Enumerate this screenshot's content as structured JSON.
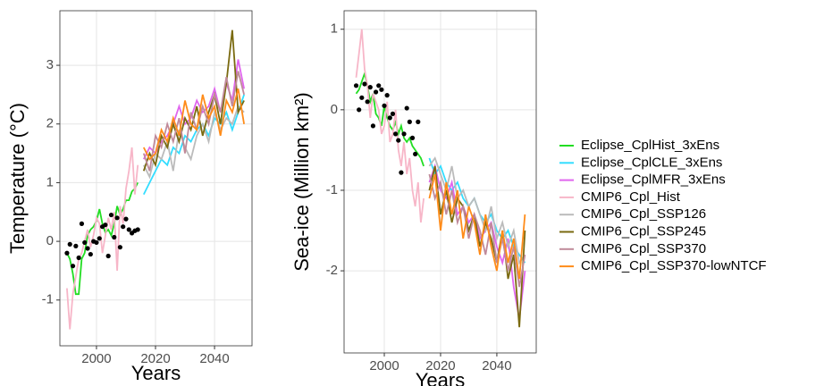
{
  "chart_data": [
    {
      "type": "line",
      "x_label": "Years",
      "y_label": "Temperature  (°C)",
      "xlim": [
        1987.6,
        2052.7
      ],
      "ylim": [
        -1.78,
        3.93
      ],
      "xticks": [
        2000,
        2020,
        2040
      ],
      "yticks": [
        -1,
        0,
        1,
        2,
        3
      ],
      "grid": true,
      "legend": "right",
      "series": [
        {
          "name": "Eclipse_CplHist_3xEns",
          "color": "#22dd22",
          "x": [
            1990,
            1991,
            1992,
            1993,
            1994,
            1995,
            1996,
            1997,
            1998,
            1999,
            2000,
            2001,
            2002,
            2003,
            2004,
            2005,
            2006,
            2007,
            2008,
            2009,
            2010,
            2011,
            2012,
            2013,
            2014
          ],
          "values": [
            -0.2,
            -0.3,
            -0.55,
            -0.9,
            -0.9,
            -0.3,
            -0.2,
            0.1,
            0.2,
            0.25,
            0.35,
            0.55,
            0.3,
            0.15,
            0.2,
            0.1,
            0.3,
            0.6,
            0.45,
            0.55,
            0.7,
            0.7,
            0.85,
            0.9,
            1.0
          ]
        },
        {
          "name": "Eclipse_CplCLE_3xEns",
          "color": "#33ddff",
          "x": [
            2016,
            2018,
            2020,
            2022,
            2024,
            2026,
            2028,
            2030,
            2032,
            2034,
            2036,
            2038,
            2040,
            2042,
            2044,
            2046,
            2048,
            2050
          ],
          "values": [
            0.8,
            1.0,
            1.2,
            1.4,
            1.3,
            1.6,
            1.5,
            1.8,
            1.7,
            1.9,
            2.0,
            1.8,
            2.1,
            2.0,
            2.2,
            1.9,
            2.2,
            2.5
          ]
        },
        {
          "name": "Eclipse_CplMFR_3xEns",
          "color": "#e066ee",
          "x": [
            2016,
            2018,
            2020,
            2022,
            2024,
            2026,
            2028,
            2030,
            2032,
            2034,
            2036,
            2038,
            2040,
            2042,
            2044,
            2046,
            2048,
            2050
          ],
          "values": [
            1.4,
            1.6,
            1.5,
            1.7,
            1.8,
            2.0,
            2.3,
            2.0,
            2.1,
            2.4,
            2.2,
            2.3,
            2.6,
            2.2,
            2.7,
            2.4,
            3.1,
            2.6
          ]
        },
        {
          "name": "CMIP6_Cpl_Hist",
          "color": "#f7b6c8",
          "x": [
            1990,
            1991,
            1992,
            1993,
            1994,
            1995,
            1996,
            1997,
            1998,
            1999,
            2000,
            2001,
            2002,
            2003,
            2004,
            2005,
            2006,
            2007,
            2008,
            2009,
            2010,
            2011,
            2012,
            2013,
            2014
          ],
          "values": [
            -0.8,
            -1.5,
            -0.9,
            -0.6,
            -0.3,
            -0.2,
            0.0,
            0.2,
            -0.1,
            0.1,
            0.4,
            0.3,
            -0.2,
            0.1,
            0.4,
            0.2,
            0.5,
            -0.5,
            0.6,
            0.3,
            0.9,
            1.2,
            1.6,
            0.8,
            1.3
          ]
        },
        {
          "name": "CMIP6_Cpl_SSP126",
          "color": "#bbbbbb",
          "x": [
            2016,
            2018,
            2020,
            2022,
            2024,
            2026,
            2028,
            2030,
            2032,
            2034,
            2036,
            2038,
            2040,
            2042,
            2044,
            2046,
            2048,
            2050
          ],
          "values": [
            1.3,
            1.1,
            1.5,
            1.4,
            1.7,
            1.2,
            1.9,
            1.6,
            1.4,
            1.8,
            2.0,
            1.7,
            2.2,
            1.9,
            2.1,
            2.0,
            2.3,
            2.2
          ]
        },
        {
          "name": "CMIP6_Cpl_SSP245",
          "color": "#7a6a10",
          "x": [
            2016,
            2018,
            2020,
            2022,
            2024,
            2026,
            2028,
            2030,
            2032,
            2034,
            2036,
            2038,
            2040,
            2042,
            2044,
            2046,
            2048,
            2050
          ],
          "values": [
            1.2,
            1.5,
            1.3,
            1.8,
            1.6,
            2.0,
            1.7,
            2.1,
            1.9,
            2.3,
            1.8,
            2.2,
            2.5,
            2.0,
            2.7,
            3.6,
            2.2,
            2.4
          ]
        },
        {
          "name": "CMIP6_Cpl_SSP370",
          "color": "#c08a9a",
          "x": [
            2016,
            2018,
            2020,
            2022,
            2024,
            2026,
            2028,
            2030,
            2032,
            2034,
            2036,
            2038,
            2040,
            2042,
            2044,
            2046,
            2048,
            2050
          ],
          "values": [
            1.5,
            1.2,
            1.8,
            1.6,
            2.0,
            1.7,
            2.1,
            1.5,
            2.2,
            1.9,
            2.3,
            2.0,
            2.5,
            2.2,
            2.8,
            2.3,
            2.9,
            2.5
          ]
        },
        {
          "name": "CMIP6_Cpl_SSP370-lowNTCF",
          "color": "#ff8c1a",
          "x": [
            2016,
            2018,
            2020,
            2022,
            2024,
            2026,
            2028,
            2030,
            2032,
            2034,
            2036,
            2038,
            2040,
            2042,
            2044,
            2046,
            2048,
            2050
          ],
          "values": [
            1.6,
            1.4,
            1.5,
            1.9,
            1.7,
            2.1,
            1.8,
            2.4,
            2.0,
            1.9,
            2.5,
            2.1,
            2.3,
            1.8,
            2.4,
            2.2,
            2.6,
            2.0
          ]
        },
        {
          "mode": "markers",
          "color": "#000000",
          "x": [
            1990,
            1991,
            1992,
            1993,
            1994,
            1995,
            1996,
            1997,
            1998,
            1999,
            2000,
            2001,
            2002,
            2003,
            2004,
            2005,
            2006,
            2007,
            2008,
            2009,
            2010,
            2011,
            2012,
            2013,
            2014
          ],
          "values": [
            -0.2,
            -0.05,
            -0.42,
            -0.08,
            -0.28,
            0.3,
            -0.02,
            -0.12,
            -0.22,
            0.0,
            -0.02,
            0.05,
            0.25,
            0.28,
            -0.25,
            0.45,
            0.07,
            0.4,
            -0.1,
            0.25,
            0.38,
            0.2,
            0.14,
            0.18,
            0.2
          ]
        }
      ]
    },
    {
      "type": "line",
      "x_label": "Years",
      "y_label": "Sea-ice  (Million km²)",
      "xlim": [
        1985.7,
        2054
      ],
      "ylim": [
        -3.02,
        1.23
      ],
      "xticks": [
        2000,
        2020,
        2040
      ],
      "yticks": [
        -2,
        -1,
        0,
        1
      ],
      "grid": true,
      "series": [
        {
          "color": "#22dd22",
          "x": [
            1990,
            1991,
            1992,
            1993,
            1994,
            1995,
            1996,
            1997,
            1998,
            1999,
            2000,
            2001,
            2002,
            2003,
            2004,
            2005,
            2006,
            2007,
            2008,
            2009,
            2010,
            2011,
            2012,
            2013,
            2014
          ],
          "values": [
            0.2,
            0.25,
            0.35,
            0.45,
            0.3,
            0.1,
            0.2,
            -0.05,
            -0.1,
            -0.2,
            0.05,
            -0.1,
            -0.2,
            -0.25,
            -0.15,
            -0.3,
            -0.2,
            -0.35,
            -0.4,
            -0.35,
            -0.45,
            -0.5,
            -0.55,
            -0.6,
            -0.7
          ]
        },
        {
          "color": "#33ddff",
          "x": [
            2016,
            2018,
            2020,
            2022,
            2024,
            2026,
            2028,
            2030,
            2032,
            2034,
            2036,
            2038,
            2040,
            2042,
            2044,
            2046,
            2048,
            2050
          ],
          "values": [
            -0.6,
            -0.8,
            -0.7,
            -0.9,
            -1.0,
            -0.9,
            -1.1,
            -1.2,
            -1.1,
            -1.3,
            -1.4,
            -1.3,
            -1.5,
            -1.6,
            -1.5,
            -1.7,
            -1.8,
            -1.9
          ]
        },
        {
          "color": "#e066ee",
          "x": [
            2016,
            2018,
            2020,
            2022,
            2024,
            2026,
            2028,
            2030,
            2032,
            2034,
            2036,
            2038,
            2040,
            2042,
            2044,
            2046,
            2048,
            2050
          ],
          "values": [
            -0.9,
            -0.7,
            -1.0,
            -1.1,
            -0.9,
            -1.3,
            -1.2,
            -1.4,
            -1.3,
            -1.6,
            -1.5,
            -1.4,
            -1.7,
            -1.9,
            -1.6,
            -2.2,
            -2.6,
            -2.0
          ]
        },
        {
          "color": "#f7b6c8",
          "x": [
            1990,
            1991,
            1992,
            1993,
            1994,
            1995,
            1996,
            1997,
            1998,
            1999,
            2000,
            2001,
            2002,
            2003,
            2004,
            2005,
            2006,
            2007,
            2008,
            2009,
            2010,
            2011,
            2012,
            2013,
            2014
          ],
          "values": [
            0.4,
            0.7,
            1.0,
            0.5,
            0.3,
            -0.1,
            0.2,
            0.1,
            0.0,
            -0.3,
            -0.2,
            0.1,
            -0.4,
            -0.3,
            0.0,
            -0.5,
            -0.7,
            -0.4,
            -0.8,
            -0.6,
            -1.0,
            -1.2,
            -0.9,
            -1.4,
            -1.1
          ]
        },
        {
          "color": "#bbbbbb",
          "x": [
            2016,
            2018,
            2020,
            2022,
            2024,
            2026,
            2028,
            2030,
            2032,
            2034,
            2036,
            2038,
            2040,
            2042,
            2044,
            2046,
            2048,
            2050
          ],
          "values": [
            -0.7,
            -0.6,
            -0.8,
            -1.0,
            -0.7,
            -1.1,
            -1.0,
            -1.2,
            -1.1,
            -1.3,
            -1.5,
            -1.2,
            -1.6,
            -1.4,
            -1.7,
            -1.5,
            -1.9,
            -1.8
          ]
        },
        {
          "color": "#7a6a10",
          "x": [
            2016,
            2018,
            2020,
            2022,
            2024,
            2026,
            2028,
            2030,
            2032,
            2034,
            2036,
            2038,
            2040,
            2042,
            2044,
            2046,
            2048,
            2050
          ],
          "values": [
            -1.0,
            -0.7,
            -1.3,
            -1.0,
            -1.4,
            -1.1,
            -1.2,
            -1.5,
            -1.3,
            -1.7,
            -1.4,
            -1.6,
            -1.9,
            -1.5,
            -2.1,
            -1.8,
            -2.7,
            -1.5
          ]
        },
        {
          "color": "#c08a9a",
          "x": [
            2016,
            2018,
            2020,
            2022,
            2024,
            2026,
            2028,
            2030,
            2032,
            2034,
            2036,
            2038,
            2040,
            2042,
            2044,
            2046,
            2048,
            2050
          ],
          "values": [
            -0.8,
            -1.1,
            -0.9,
            -1.3,
            -1.0,
            -1.4,
            -1.2,
            -1.6,
            -1.3,
            -1.5,
            -1.8,
            -1.4,
            -1.9,
            -1.6,
            -2.0,
            -1.7,
            -2.2,
            -1.8
          ]
        },
        {
          "color": "#ff8c1a",
          "x": [
            2016,
            2018,
            2020,
            2022,
            2024,
            2026,
            2028,
            2030,
            2032,
            2034,
            2036,
            2038,
            2040,
            2042,
            2044,
            2046,
            2048,
            2050
          ],
          "values": [
            -1.1,
            -0.8,
            -1.5,
            -0.9,
            -1.3,
            -1.0,
            -1.6,
            -1.2,
            -1.4,
            -1.8,
            -1.3,
            -1.7,
            -2.0,
            -1.5,
            -1.9,
            -1.6,
            -2.1,
            -1.3
          ]
        },
        {
          "mode": "markers",
          "color": "#000000",
          "x": [
            1990,
            1991,
            1992,
            1993,
            1994,
            1995,
            1996,
            1997,
            1998,
            1999,
            2000,
            2001,
            2002,
            2003,
            2004,
            2005,
            2006,
            2007,
            2008,
            2009,
            2010,
            2011,
            2012
          ],
          "values": [
            0.3,
            0.0,
            0.15,
            0.32,
            0.1,
            0.28,
            -0.2,
            0.22,
            0.3,
            0.25,
            0.05,
            0.18,
            -0.1,
            -0.05,
            -0.3,
            -0.38,
            -0.78,
            -0.3,
            0.02,
            -0.15,
            -0.35,
            -0.55,
            -0.15
          ]
        }
      ]
    }
  ]
}
